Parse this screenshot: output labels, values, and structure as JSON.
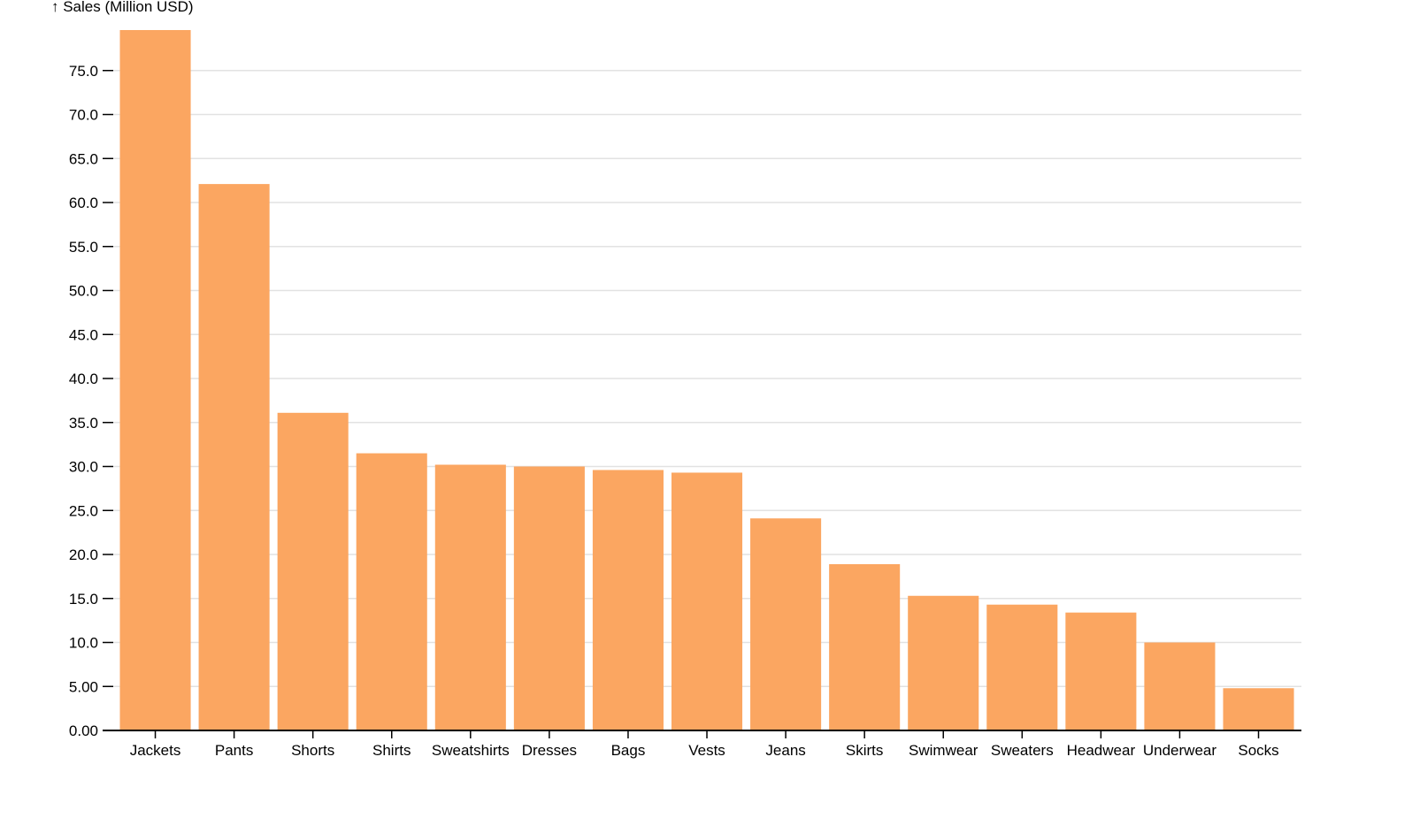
{
  "chart_data": {
    "type": "bar",
    "title": "",
    "xlabel": "",
    "ylabel": "↑ Sales (Million USD)",
    "categories": [
      "Jackets",
      "Pants",
      "Shorts",
      "Shirts",
      "Sweatshirts",
      "Dresses",
      "Bags",
      "Vests",
      "Jeans",
      "Skirts",
      "Swimwear",
      "Sweaters",
      "Headwear",
      "Underwear",
      "Socks"
    ],
    "values": [
      79.6,
      62.1,
      36.1,
      31.5,
      30.2,
      30.0,
      29.6,
      29.3,
      24.1,
      18.9,
      15.3,
      14.3,
      13.4,
      10.0,
      4.8
    ],
    "ylim": [
      0,
      80
    ],
    "yticks": [
      "0.00",
      "5.00",
      "10.0",
      "15.0",
      "20.0",
      "25.0",
      "30.0",
      "35.0",
      "40.0",
      "45.0",
      "50.0",
      "55.0",
      "60.0",
      "65.0",
      "70.0",
      "75.0"
    ],
    "grid": true,
    "bar_color": "#fba661"
  }
}
